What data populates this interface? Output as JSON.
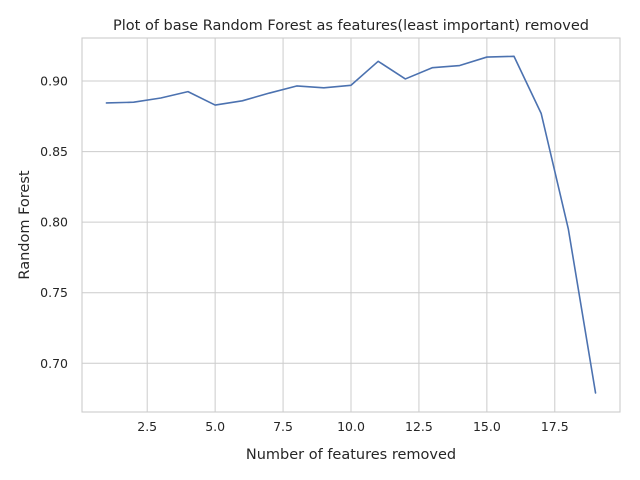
{
  "chart_data": {
    "type": "line",
    "title": "Plot of base Random Forest as features(least important) removed",
    "xlabel": "Number of features removed",
    "ylabel": "Random Forest",
    "xlim": [
      0.1,
      19.9
    ],
    "ylim": [
      0.6655,
      0.9305
    ],
    "xticks": [
      2.5,
      5.0,
      7.5,
      10.0,
      12.5,
      15.0,
      17.5
    ],
    "xtick_labels": [
      "2.5",
      "5.0",
      "7.5",
      "10.0",
      "12.5",
      "15.0",
      "17.5"
    ],
    "yticks": [
      0.7,
      0.75,
      0.8,
      0.85,
      0.9
    ],
    "ytick_labels": [
      "0.70",
      "0.75",
      "0.80",
      "0.85",
      "0.90"
    ],
    "grid": true,
    "series": [
      {
        "color": "#4c72b0",
        "x": [
          1,
          2,
          3,
          4,
          5,
          6,
          7,
          8,
          9,
          10,
          11,
          12,
          13,
          14,
          15,
          16,
          17,
          18,
          19
        ],
        "y": [
          0.8845,
          0.885,
          0.888,
          0.8925,
          0.883,
          0.886,
          0.8915,
          0.8965,
          0.8952,
          0.897,
          0.914,
          0.9015,
          0.9095,
          0.911,
          0.917,
          0.9175,
          0.877,
          0.795,
          0.679
        ]
      }
    ]
  }
}
